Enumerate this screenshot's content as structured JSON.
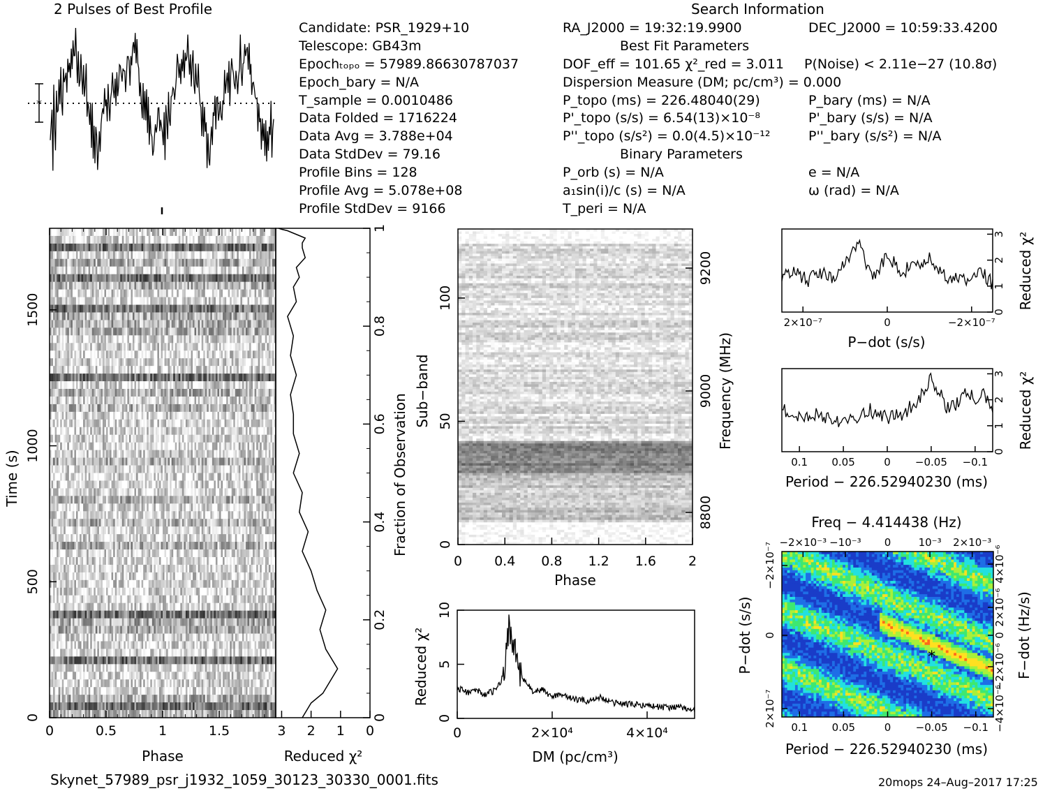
{
  "header": {
    "profile_title": "2 Pulses of Best Profile",
    "search_title": "Search Information",
    "best_fit_title": "Best Fit Parameters",
    "binary_title": "Binary Parameters",
    "filename": "Skynet_57989_psr_j1932_1059_30123_30330_0001.fits",
    "footer_stamp": "20mops 24–Aug–2017 17:25"
  },
  "info": {
    "candidate": "Candidate:  PSR_1929+10",
    "telescope": "Telescope:  GB43m",
    "epoch_topo": "Epochₜₒₚₒ = 57989.86630787037",
    "epoch_bary": "Epoch_bary = N/A",
    "t_sample": "T_sample        =  0.0010486",
    "data_folded": "Data Folded   =  1716224",
    "data_avg": "Data Avg       =  3.788e+04",
    "data_stddev": "Data StdDev   =  79.16",
    "profile_bins": "Profile Bins    =  128",
    "profile_avg": "Profile Avg     =  5.078e+08",
    "profile_stddev": "Profile StdDev  =  9166",
    "ra": "RA_J2000 = 19:32:19.9900",
    "dec": "DEC_J2000 = 10:59:33.4200",
    "dof": "DOF_eff = 101.65  χ²_red = 3.011",
    "p_noise": "P(Noise) < 2.11e−27  (10.8σ)",
    "dm": "Dispersion Measure (DM; pc/cm³) = 0.000",
    "p_topo": "P_topo (ms) =  226.48040(29)",
    "pd_topo": "P'_topo (s/s) =  6.54(13)×10⁻⁸",
    "pdd_topo": "P''_topo (s/s²) = 0.0(4.5)×10⁻¹²",
    "p_bary": "P_bary (ms) = N/A",
    "pd_bary": "P'_bary (s/s) = N/A",
    "pdd_bary": "P''_bary (s/s²) = N/A",
    "p_orb": "P_orb (s) = N/A",
    "a1": "a₁sin(i)/c (s) = N/A",
    "t_peri": "T_peri = N/A",
    "e": "e = N/A",
    "omega": "ω (rad) = N/A"
  },
  "chart_data": [
    {
      "id": "profile",
      "type": "line",
      "title": "2 Pulses of Best Profile",
      "xlim": [
        0,
        2
      ],
      "description_values": "profile amplitude vs phase, 2 pulses of 128 bins",
      "values": [
        0.42,
        0.35,
        0.55,
        0.2,
        0.62,
        0.4,
        0.3,
        0.58,
        0.45,
        0.5,
        0.66,
        0.52,
        0.71,
        0.6,
        0.5,
        0.72,
        0.64,
        0.78,
        0.7,
        0.62,
        0.74,
        0.68,
        0.86,
        0.7,
        0.8,
        0.72,
        0.9,
        0.82,
        0.76,
        0.95,
        0.85,
        0.7,
        0.8,
        0.68,
        0.75,
        0.88,
        0.72,
        0.64,
        0.7,
        0.58,
        0.62,
        0.72,
        0.55,
        0.6,
        0.5,
        0.42,
        0.56,
        0.34,
        0.48,
        0.3,
        0.44,
        0.22,
        0.38,
        0.28,
        0.15,
        0.32,
        0.4,
        0.3,
        0.45,
        0.5,
        0.55,
        0.48,
        0.62,
        0.58,
        0.5,
        0.45,
        0.6,
        0.52,
        0.42,
        0.58,
        0.62,
        0.7,
        0.55,
        0.6,
        0.66,
        0.58,
        0.72,
        0.62,
        0.68,
        0.8,
        0.72,
        0.66,
        0.75,
        0.7,
        0.82,
        0.76,
        0.68,
        0.8,
        0.74,
        0.88,
        0.78,
        0.72,
        0.84,
        0.76,
        0.95,
        0.84,
        0.78,
        0.9,
        0.72,
        0.86,
        0.74,
        0.8,
        0.68,
        0.72,
        0.62,
        0.55,
        0.65,
        0.5,
        0.58,
        0.45,
        0.6,
        0.42,
        0.52,
        0.35,
        0.5,
        0.3,
        0.42,
        0.24,
        0.36,
        0.28,
        0.4,
        0.3,
        0.5,
        0.45,
        0.58,
        0.3,
        0.44,
        0.38
      ]
    },
    {
      "id": "time_phase",
      "type": "heatmap",
      "xlabel": "Phase",
      "ylabel": "Time (s)",
      "xlim": [
        0,
        2
      ],
      "ylim": [
        0,
        1800
      ],
      "x_ticks": [
        "0",
        "0.5",
        "1",
        "1.5"
      ],
      "y_ticks": [
        "0",
        "500",
        "1000",
        "1500"
      ],
      "colormap": "grayscale"
    },
    {
      "id": "time_redchi",
      "type": "line",
      "xlabel": "Reduced χ²",
      "ylabel": "Fraction of Observation",
      "x_ticks": [
        "3",
        "2",
        "1",
        "0"
      ],
      "y_ticks": [
        "0",
        "0.2",
        "0.4",
        "0.6",
        "0.8",
        "1"
      ],
      "x": [
        2.3,
        2.0,
        1.6,
        1.3,
        1.1,
        1.5,
        1.7,
        1.5,
        1.8,
        2.0,
        2.3,
        2.1,
        2.4,
        2.3,
        2.6,
        2.4,
        2.6,
        2.6,
        2.7,
        2.5,
        2.7,
        2.6,
        2.8,
        2.5,
        2.6,
        2.4,
        2.5,
        2.2,
        2.3,
        2.3,
        2.2,
        2.4,
        2.6,
        2.8,
        3.0,
        3.1
      ],
      "y": [
        0,
        0.03,
        0.05,
        0.08,
        0.1,
        0.14,
        0.18,
        0.22,
        0.26,
        0.3,
        0.34,
        0.38,
        0.42,
        0.46,
        0.5,
        0.54,
        0.58,
        0.62,
        0.66,
        0.7,
        0.74,
        0.78,
        0.82,
        0.85,
        0.88,
        0.9,
        0.92,
        0.94,
        0.96,
        0.97,
        0.98,
        0.985,
        0.99,
        0.995,
        0.998,
        1.0
      ]
    },
    {
      "id": "subband_phase",
      "type": "heatmap",
      "xlabel": "Phase",
      "ylabel": "Sub−band",
      "y2label": "Frequency (MHz)",
      "xlim": [
        0,
        2
      ],
      "ylim": [
        0,
        128
      ],
      "x_ticks": [
        "0",
        "0.4",
        "0.8",
        "1.2",
        "1.6",
        "2"
      ],
      "y_ticks": [
        "0",
        "50",
        "100"
      ],
      "y2_ticks": [
        "8800",
        "9000",
        "9200"
      ],
      "colormap": "grayscale"
    },
    {
      "id": "dm_curve",
      "type": "line",
      "xlabel": "DM (pc/cm³)",
      "ylabel": "Reduced χ²",
      "xlim": [
        0,
        50000
      ],
      "ylim": [
        0,
        10
      ],
      "x_ticks": [
        "0",
        "2×10⁴",
        "4×10⁴"
      ],
      "y_ticks": [
        "0",
        "5",
        "10"
      ],
      "x": [
        0,
        2000,
        4000,
        6000,
        8000,
        9000,
        10000,
        10500,
        11000,
        11500,
        12000,
        12500,
        13000,
        14000,
        16000,
        18000,
        20000,
        22000,
        24000,
        26000,
        28000,
        30000,
        32000,
        34000,
        36000,
        38000,
        40000,
        42000,
        44000,
        46000,
        48000,
        50000
      ],
      "y": [
        2.8,
        2.4,
        2.6,
        2.2,
        2.6,
        3.2,
        4.5,
        7.0,
        9.2,
        6.5,
        7.5,
        5.0,
        4.5,
        3.5,
        2.5,
        2.6,
        2.0,
        2.3,
        1.8,
        1.7,
        1.6,
        2.0,
        1.5,
        1.4,
        1.3,
        1.3,
        1.2,
        1.1,
        1.0,
        1.1,
        0.9,
        0.8
      ]
    },
    {
      "id": "pdot_curve",
      "type": "line",
      "xlabel": "P−dot (s/s)",
      "ylabel": "Reduced χ²",
      "xlim": [
        2.5e-07,
        -2.5e-07
      ],
      "ylim": [
        0,
        3.2
      ],
      "x_ticks": [
        "2×10⁻⁷",
        "0",
        "−2×10⁻⁷"
      ],
      "y_ticks": [
        "0",
        "1",
        "2",
        "3"
      ],
      "x": [
        2.5e-07,
        2.2e-07,
        1.9e-07,
        1.6e-07,
        1.3e-07,
        1e-07,
        8e-08,
        6.5e-08,
        5e-08,
        3.5e-08,
        2e-08,
        0,
        -2e-08,
        -4e-08,
        -6e-08,
        -8e-08,
        -1e-07,
        -1.3e-07,
        -1.6e-07,
        -1.9e-07,
        -2.2e-07,
        -2.5e-07
      ],
      "y": [
        1.3,
        1.6,
        1.2,
        1.5,
        1.3,
        1.8,
        2.4,
        2.9,
        1.8,
        1.4,
        1.6,
        2.2,
        1.8,
        1.5,
        2.0,
        1.6,
        2.1,
        1.4,
        1.3,
        1.2,
        1.6,
        1.1
      ]
    },
    {
      "id": "period_curve",
      "type": "line",
      "xlabel": "Period − 226.52940230 (ms)",
      "ylabel": "Reduced χ²",
      "xlim": [
        0.12,
        -0.12
      ],
      "ylim": [
        0,
        3.2
      ],
      "x_ticks": [
        "0.1",
        "0.05",
        "0",
        "−0.05",
        "−0.1"
      ],
      "y_ticks": [
        "0",
        "1",
        "2",
        "3"
      ],
      "x": [
        0.12,
        0.1,
        0.08,
        0.06,
        0.04,
        0.02,
        0,
        -0.02,
        -0.035,
        -0.05,
        -0.06,
        -0.07,
        -0.08,
        -0.09,
        -0.1,
        -0.11,
        -0.12
      ],
      "y": [
        1.6,
        1.3,
        1.5,
        1.2,
        1.3,
        1.6,
        1.3,
        1.5,
        2.0,
        2.8,
        2.2,
        1.6,
        1.9,
        2.3,
        2.0,
        2.2,
        1.5
      ]
    },
    {
      "id": "pdot_period_map",
      "type": "heatmap",
      "title": "Freq − 4.414438 (Hz)",
      "xlabel": "Period − 226.52940230 (ms)",
      "ylabel": "P−dot (s/s)",
      "y2label": "F−dot (Hz/s)",
      "x_ticks": [
        "0.1",
        "0.05",
        "0",
        "−0.05",
        "−0.1"
      ],
      "x2_ticks": [
        "−2×10⁻³",
        "−10⁻³",
        "0",
        "10⁻³",
        "2×10⁻³"
      ],
      "y_ticks": [
        "−2×10⁻⁷",
        "0",
        "2×10⁻⁷"
      ],
      "y2_ticks": [
        "4×10⁻⁶",
        "2×10⁻⁶",
        "0",
        "−2×10⁻⁶",
        "−4×10⁻⁶"
      ],
      "best_marker": {
        "period": -0.05,
        "pdot": 6.54e-08
      },
      "colormap": "rainbow"
    }
  ],
  "colors": {
    "map_low": "#1a3cc8",
    "map_mid": "#22e0e0",
    "map_high": "#ffe020",
    "map_peak": "#ff6a1a",
    "ink": "#000000"
  }
}
